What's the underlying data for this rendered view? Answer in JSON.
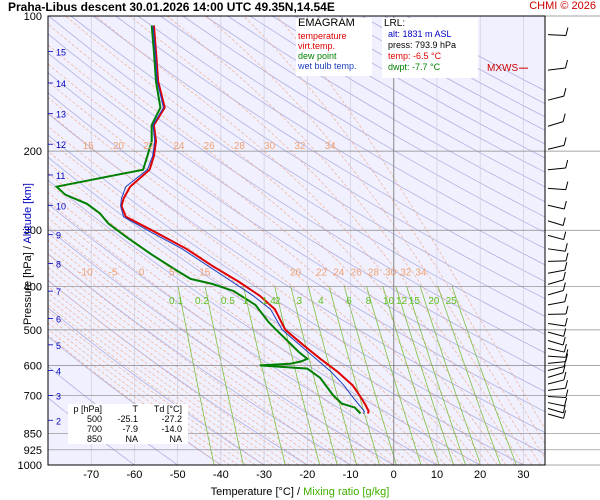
{
  "header": {
    "title": "Praha-Libus   descent   30.01.2026 14:00 UTC  49.35N,14.54E",
    "copyright": "CHMI © 2026"
  },
  "legend": {
    "heading": "EMAGRAM",
    "items": [
      {
        "label": "temperature",
        "color": "#e00000"
      },
      {
        "label": "virt.temp.",
        "color": "#e00000"
      },
      {
        "label": "dew point",
        "color": "#008000"
      },
      {
        "label": "wet bulb temp.",
        "color": "#2040c0"
      }
    ]
  },
  "lrl": {
    "heading": "LRL:",
    "alt": "alt: 1831 m ASL",
    "press": "press: 793.9 hPa",
    "temp": "temp: -6.5 °C",
    "dwpt": "dwpt: -7.7 °C"
  },
  "mxws_label": "MXWS",
  "table": {
    "header": [
      "p [hPa]",
      "T",
      "Td [°C]"
    ],
    "rows": [
      [
        "500",
        "-25.1",
        "-27.2"
      ],
      [
        "700",
        "-7.9",
        "-14.0"
      ],
      [
        "850",
        "NA",
        "NA"
      ]
    ]
  },
  "axes": {
    "ylabel_pressure": "Pressure [hPa]",
    "ylabel_sep": "  /  ",
    "ylabel_altitude": "Altitude [km]",
    "xlabel_temp": "Temperature [°C]",
    "xlabel_sep": "  /  ",
    "xlabel_mix": "Mixing ratio [g/kg]"
  },
  "colors": {
    "temperature": "#e00000",
    "dewpoint": "#008000",
    "wetbulb": "#2040c0",
    "dry_adiabat": "#b0b0e0",
    "mixing_ratio": "#80c040",
    "moist_adiabat": "#f0b090",
    "background": "#f0f0ff"
  },
  "chart_data": {
    "type": "line",
    "xlim": [
      -80,
      35
    ],
    "ylim": [
      1000,
      100
    ],
    "yscale": "log",
    "x_ticks": [
      -70,
      -60,
      -50,
      -40,
      -30,
      -20,
      -10,
      0,
      10,
      20,
      30
    ],
    "p_ticks": [
      100,
      200,
      300,
      400,
      500,
      600,
      700,
      850,
      925,
      1000
    ],
    "km_ticks": [
      2,
      3,
      4,
      5,
      6,
      7,
      8,
      9,
      10,
      11,
      12,
      13,
      14,
      15
    ],
    "km_tick_pressures": [
      795,
      700,
      616,
      540,
      472,
      410,
      356,
      307,
      264,
      226,
      193,
      165,
      141,
      120
    ],
    "moist_labels_upper": [
      "15",
      "20",
      "22",
      "24",
      "26",
      "28",
      "30",
      "32",
      "34"
    ],
    "moist_labels_lower": [
      "-10",
      "-5",
      "0",
      "5",
      "15",
      "20",
      "22",
      "24",
      "26",
      "28",
      "30",
      "32",
      "34"
    ],
    "mixing_labels": [
      "0.1",
      "0.2",
      "0.5",
      "1",
      "1.4",
      "2",
      "3",
      "4",
      "6",
      "8",
      "10",
      "12",
      "15",
      "20",
      "25"
    ],
    "grid": true,
    "series": [
      {
        "name": "temperature",
        "points": [
          [
            -55.5,
            105
          ],
          [
            -55.0,
            120
          ],
          [
            -54.5,
            140
          ],
          [
            -53.0,
            160
          ],
          [
            -55.5,
            175
          ],
          [
            -55.0,
            190
          ],
          [
            -55.5,
            205
          ],
          [
            -56.5,
            220
          ],
          [
            -61.0,
            240
          ],
          [
            -62.5,
            255
          ],
          [
            -63.0,
            265
          ],
          [
            -62.0,
            280
          ],
          [
            -56.0,
            300
          ],
          [
            -48.0,
            330
          ],
          [
            -42.0,
            360
          ],
          [
            -36.0,
            390
          ],
          [
            -31.0,
            420
          ],
          [
            -27.5,
            450
          ],
          [
            -25.1,
            500
          ],
          [
            -21.0,
            540
          ],
          [
            -17.0,
            580
          ],
          [
            -13.0,
            620
          ],
          [
            -9.5,
            665
          ],
          [
            -7.9,
            700
          ],
          [
            -6.5,
            735
          ],
          [
            -5.8,
            760
          ],
          [
            -6.0,
            768
          ]
        ]
      },
      {
        "name": "dew point",
        "points": [
          [
            -56.0,
            105
          ],
          [
            -55.5,
            120
          ],
          [
            -55.0,
            140
          ],
          [
            -54.0,
            160
          ],
          [
            -56.0,
            175
          ],
          [
            -56.0,
            190
          ],
          [
            -57.0,
            205
          ],
          [
            -58.0,
            220
          ],
          [
            -78.0,
            240
          ],
          [
            -76.0,
            250
          ],
          [
            -71.0,
            262
          ],
          [
            -68.0,
            275
          ],
          [
            -66.0,
            290
          ],
          [
            -62.0,
            310
          ],
          [
            -56.0,
            340
          ],
          [
            -50.0,
            370
          ],
          [
            -47.0,
            385
          ],
          [
            -42.0,
            395
          ],
          [
            -37.0,
            410
          ],
          [
            -32.0,
            440
          ],
          [
            -29.0,
            480
          ],
          [
            -27.2,
            500
          ],
          [
            -22.0,
            560
          ],
          [
            -20.0,
            580
          ],
          [
            -21.5,
            588
          ],
          [
            -24.0,
            595
          ],
          [
            -31.0,
            600
          ],
          [
            -20.0,
            610
          ],
          [
            -17.0,
            640
          ],
          [
            -14.0,
            700
          ],
          [
            -12.0,
            730
          ],
          [
            -9.0,
            745
          ],
          [
            -7.7,
            768
          ]
        ]
      },
      {
        "name": "wet bulb temp.",
        "points": [
          [
            -55.7,
            105
          ],
          [
            -55.2,
            120
          ],
          [
            -54.7,
            140
          ],
          [
            -53.3,
            160
          ],
          [
            -55.7,
            175
          ],
          [
            -55.3,
            190
          ],
          [
            -55.8,
            205
          ],
          [
            -57.0,
            220
          ],
          [
            -62.0,
            240
          ],
          [
            -63.0,
            255
          ],
          [
            -63.2,
            265
          ],
          [
            -62.5,
            280
          ],
          [
            -57.0,
            300
          ],
          [
            -49.0,
            330
          ],
          [
            -43.0,
            360
          ],
          [
            -37.5,
            390
          ],
          [
            -32.5,
            420
          ],
          [
            -28.5,
            450
          ],
          [
            -25.8,
            500
          ],
          [
            -21.8,
            540
          ],
          [
            -18.0,
            580
          ],
          [
            -14.5,
            620
          ],
          [
            -11.5,
            665
          ],
          [
            -9.8,
            700
          ],
          [
            -8.0,
            735
          ],
          [
            -6.8,
            760
          ],
          [
            -7.0,
            768
          ]
        ]
      }
    ]
  }
}
